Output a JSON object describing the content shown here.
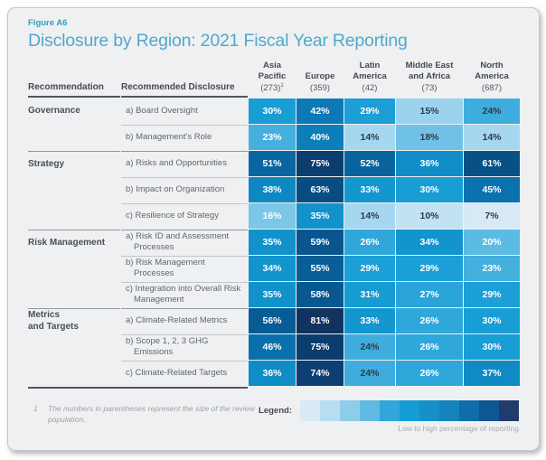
{
  "figure": {
    "label": "Figure A6",
    "title": "Disclosure by Region: 2021 Fiscal Year Reporting"
  },
  "table": {
    "col_headers": {
      "recommendation": "Recommendation",
      "disclosure": "Recommended Disclosure"
    },
    "regions": [
      {
        "name": "Asia\nPacific",
        "count": "(273)",
        "sup": "1"
      },
      {
        "name": "Europe",
        "count": "(359)",
        "sup": ""
      },
      {
        "name": "Latin\nAmerica",
        "count": "(42)",
        "sup": ""
      },
      {
        "name": "Middle East\nand Africa",
        "count": "(73)",
        "sup": ""
      },
      {
        "name": "North\nAmerica",
        "count": "(687)",
        "sup": ""
      }
    ],
    "groups": [
      {
        "recommendation": "Governance",
        "rows": [
          {
            "disclosure": "a) Board Oversight"
          },
          {
            "disclosure": "b) Management's Role"
          }
        ]
      },
      {
        "recommendation": "Strategy",
        "rows": [
          {
            "disclosure": "a) Risks and Opportunities"
          },
          {
            "disclosure": "b) Impact on Organization"
          },
          {
            "disclosure": "c) Resilience of Strategy"
          }
        ]
      },
      {
        "recommendation": "Risk Management",
        "rows": [
          {
            "disclosure": "a) Risk ID and Assessment Processes"
          },
          {
            "disclosure": "b) Risk Management Processes"
          },
          {
            "disclosure": "c) Integration into Overall Risk Management"
          }
        ]
      },
      {
        "recommendation": "Metrics\nand Targets",
        "rows": [
          {
            "disclosure": "a) Climate-Related Metrics"
          },
          {
            "disclosure": "b) Scope 1, 2, 3 GHG Emissions"
          },
          {
            "disclosure": "c) Climate-Related Targets"
          }
        ]
      }
    ],
    "value_colors": {
      "7": "#d7e9f6",
      "10": "#c2e2f4",
      "14": "#a6d7f0",
      "15": "#9bd3ee",
      "16": "#7cc6e7",
      "18": "#6fc1e5",
      "20": "#5cbbe3",
      "23": "#45b0de",
      "24": "#3eaddd",
      "26": "#2fa7da",
      "27": "#2ba4d9",
      "29": "#1b9fd6",
      "30": "#189dd4",
      "31": "#169bd2",
      "33": "#1496cf",
      "34": "#1294cd",
      "35": "#1192cb",
      "36": "#108dc6",
      "37": "#0f8ac4",
      "38": "#0e88c2",
      "40": "#0c7fba",
      "42": "#0b79b5",
      "45": "#0a72ae",
      "46": "#0a70ab",
      "51": "#0a66a0",
      "52": "#09649e",
      "55": "#095e97",
      "56": "#085c95",
      "58": "#08588f",
      "59": "#08568d",
      "61": "#075187",
      "63": "#074d82",
      "74": "#0d3f72",
      "75": "#0c3d6f",
      "81": "#12335f"
    },
    "dark_text_values": [
      7,
      10,
      14,
      15,
      18,
      24
    ],
    "dark_text_color": "#2f3b49",
    "light_text_color": "#ffffff"
  },
  "footnote": {
    "marker": "1",
    "text": "The numbers in parentheses represent the size of the review population."
  },
  "legend": {
    "label": "Legend:",
    "caption": "Low to high percentage of reporting",
    "colors": [
      "#d9eaf7",
      "#b7ddf2",
      "#8ecdea",
      "#60bae1",
      "#2fa7da",
      "#149cd3",
      "#1590c8",
      "#1483bb",
      "#0f6dac",
      "#0d5795",
      "#203c6d"
    ]
  },
  "chart_data": {
    "type": "heatmap",
    "title": "Disclosure by Region: 2021 Fiscal Year Reporting",
    "unit": "%",
    "columns": [
      "Asia Pacific (273)",
      "Europe (359)",
      "Latin America (42)",
      "Middle East and Africa (73)",
      "North America (687)"
    ],
    "legend": "Low to high percentage of reporting",
    "rows": [
      {
        "group": "Governance",
        "label": "a) Board Oversight",
        "values": [
          30,
          42,
          29,
          15,
          24
        ]
      },
      {
        "group": "Governance",
        "label": "b) Management's Role",
        "values": [
          23,
          40,
          14,
          18,
          14
        ]
      },
      {
        "group": "Strategy",
        "label": "a) Risks and Opportunities",
        "values": [
          51,
          75,
          52,
          36,
          61
        ]
      },
      {
        "group": "Strategy",
        "label": "b) Impact on Organization",
        "values": [
          38,
          63,
          33,
          30,
          45
        ]
      },
      {
        "group": "Strategy",
        "label": "c) Resilience of Strategy",
        "values": [
          16,
          35,
          14,
          10,
          7
        ]
      },
      {
        "group": "Risk Management",
        "label": "a) Risk ID and Assessment Processes",
        "values": [
          35,
          59,
          26,
          34,
          20
        ]
      },
      {
        "group": "Risk Management",
        "label": "b) Risk Management Processes",
        "values": [
          34,
          55,
          29,
          29,
          23
        ]
      },
      {
        "group": "Risk Management",
        "label": "c) Integration into Overall Risk Management",
        "values": [
          35,
          58,
          31,
          27,
          29
        ]
      },
      {
        "group": "Metrics and Targets",
        "label": "a) Climate-Related Metrics",
        "values": [
          56,
          81,
          33,
          26,
          30
        ]
      },
      {
        "group": "Metrics and Targets",
        "label": "b) Scope 1, 2, 3 GHG Emissions",
        "values": [
          46,
          75,
          24,
          26,
          30
        ]
      },
      {
        "group": "Metrics and Targets",
        "label": "c) Climate-Related Targets",
        "values": [
          36,
          74,
          24,
          26,
          37
        ]
      }
    ]
  }
}
